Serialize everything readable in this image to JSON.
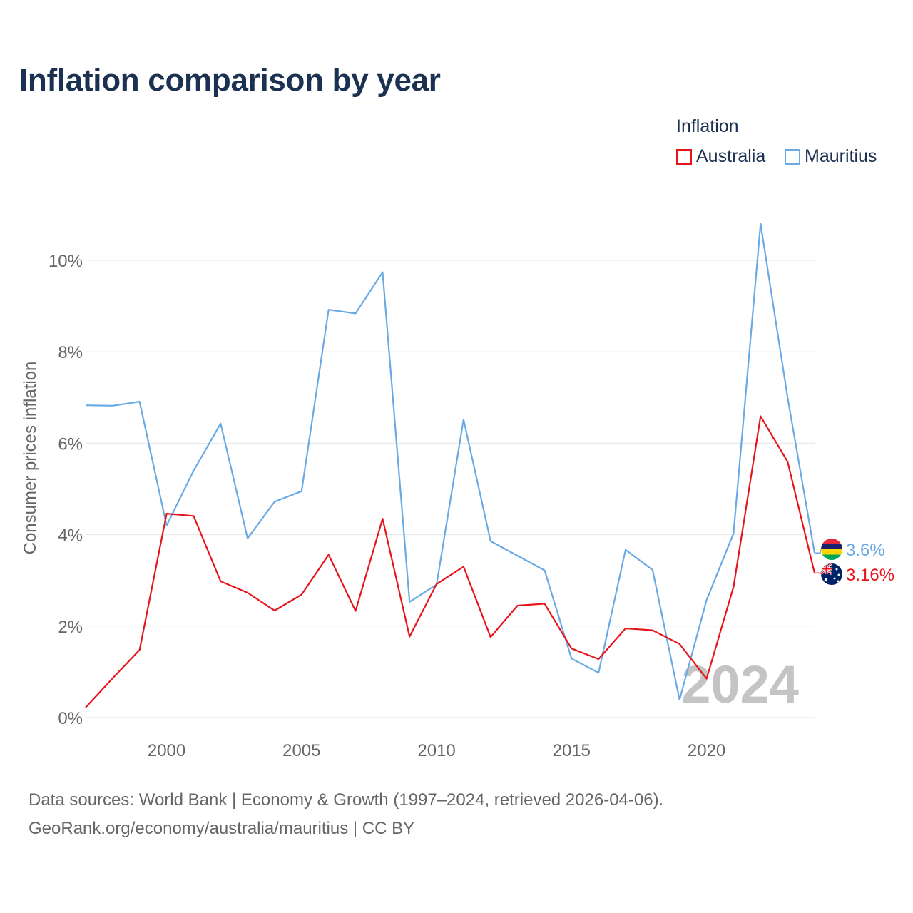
{
  "title": "Inflation comparison by year",
  "legend": {
    "title": "Inflation",
    "items": [
      "Australia",
      "Mauritius"
    ]
  },
  "colors": {
    "australia": "#e8141b",
    "mauritius": "#6aaae4",
    "grid": "#e6e6e6",
    "axis_text": "#666666",
    "year_watermark": "#c4c4c4"
  },
  "source": {
    "line1": "Data sources: World Bank | Economy & Growth (1997–2024, retrieved 2026-04-06).",
    "line2": "GeoRank.org/economy/australia/mauritius | CC BY"
  },
  "chart_data": {
    "type": "line",
    "title": "Inflation comparison by year",
    "xlabel": "",
    "ylabel": "Consumer prices inflation",
    "xlim": [
      1997,
      2024
    ],
    "ylim": [
      0,
      11
    ],
    "x_ticks": [
      "2000",
      "2005",
      "2010",
      "2015",
      "2020"
    ],
    "y_ticks": [
      "0%",
      "2%",
      "4%",
      "6%",
      "8%",
      "10%"
    ],
    "watermark_year": "2024",
    "x": [
      1997,
      1998,
      1999,
      2000,
      2001,
      2002,
      2003,
      2004,
      2005,
      2006,
      2007,
      2008,
      2009,
      2010,
      2011,
      2012,
      2013,
      2014,
      2015,
      2016,
      2017,
      2018,
      2019,
      2020,
      2021,
      2022,
      2023,
      2024
    ],
    "series": [
      {
        "name": "Australia",
        "color": "#e8141b",
        "end_label": "3.16%",
        "values": [
          0.22,
          0.86,
          1.48,
          4.46,
          4.41,
          2.98,
          2.73,
          2.34,
          2.69,
          3.56,
          2.33,
          4.35,
          1.77,
          2.92,
          3.3,
          1.76,
          2.45,
          2.49,
          1.51,
          1.28,
          1.95,
          1.91,
          1.61,
          0.85,
          2.86,
          6.59,
          5.6,
          3.16
        ]
      },
      {
        "name": "Mauritius",
        "color": "#6aaae4",
        "end_label": "3.6%",
        "values": [
          6.83,
          6.82,
          6.91,
          4.2,
          5.4,
          6.43,
          3.92,
          4.72,
          4.95,
          8.92,
          8.84,
          9.74,
          2.53,
          2.91,
          6.52,
          3.86,
          3.54,
          3.22,
          1.29,
          0.98,
          3.67,
          3.23,
          0.39,
          2.57,
          4.03,
          10.8,
          7.01,
          3.6
        ]
      }
    ]
  }
}
